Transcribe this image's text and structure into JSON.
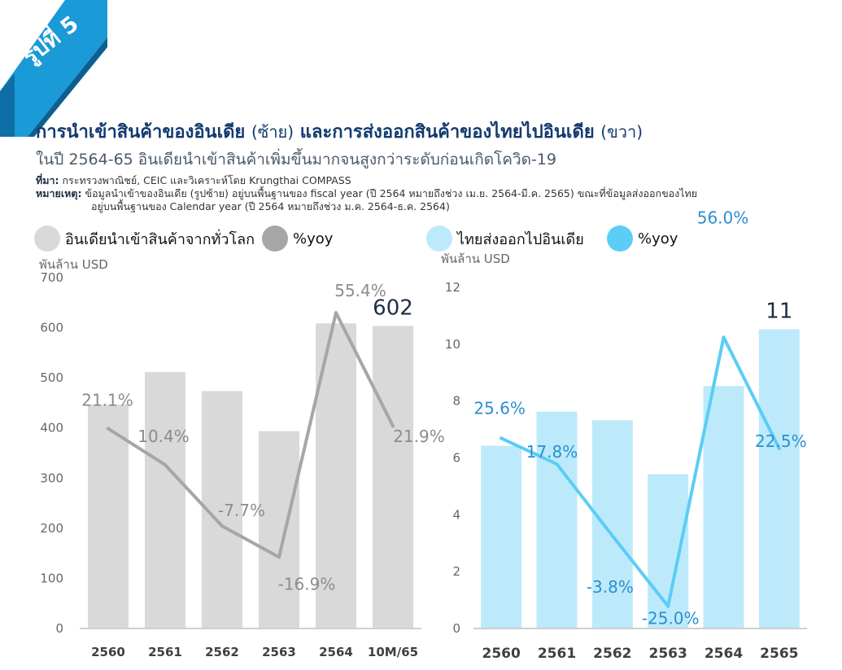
{
  "badge": {
    "label": "รูปที่ 5"
  },
  "header": {
    "title_left": "การนำเข้าสินค้าของอินเดีย",
    "title_left_paren": "(ซ้าย)",
    "title_mid": "และการส่งออกสินค้าของไทยไปอินเดีย",
    "title_right_paren": "(ขวา)",
    "subtitle": "ในปี 2564-65 อินเดียนำเข้าสินค้าเพิ่มขึ้นมากจนสูงกว่าระดับก่อนเกิดโควิด-19"
  },
  "notes": {
    "source_label": "ที่มา:",
    "source_text": "กระทรวงพาณิชย์, CEIC และวิเคราะห์โดย Krungthai COMPASS",
    "remark_label": "หมายเหตุ:",
    "remark_line1": "ข้อมูลนำเข้าของอินเดีย (รูปซ้าย) อยู่บนพื้นฐานของ fiscal year (ปี 2564 หมายถึงช่วง เม.ย. 2564-มี.ค. 2565) ขณะที่ข้อมูลส่งออกของไทย",
    "remark_line2": "อยู่บนพื้นฐานของ Calendar year (ปี 2564 หมายถึงช่วง ม.ค. 2564-ธ.ค. 2564)"
  },
  "colors": {
    "left_bar": "#d9d9d9",
    "left_line": "#a6a6a6",
    "right_bar": "#bdeafb",
    "right_line": "#5bcdf6",
    "right_label": "#2b8fd0",
    "title": "#123a6e",
    "ribbon": "#1a9ad6"
  },
  "chart_data": [
    {
      "type": "bar",
      "ylabel": "พันล้าน USD",
      "ylim": [
        0,
        700
      ],
      "yticks": [
        0,
        100,
        200,
        300,
        400,
        500,
        600,
        700
      ],
      "categories": [
        "2560",
        "2561",
        "2562",
        "2563",
        "2564",
        "10M/65"
      ],
      "series": [
        {
          "name": "อินเดียนำเข้าสินค้าจากทั่วโลก",
          "type": "bar",
          "values": [
            445,
            510,
            472,
            392,
            607,
            602
          ]
        },
        {
          "name": "%yoy",
          "type": "line",
          "values": [
            21.1,
            10.4,
            -7.7,
            -16.9,
            55.4,
            21.9
          ],
          "labels": [
            "21.1%",
            "10.4%",
            "-7.7%",
            "-16.9%",
            "55.4%",
            "21.9%"
          ]
        }
      ],
      "bar_value_labels": [
        {
          "category": "10M/65",
          "text": "602"
        }
      ],
      "grid": false
    },
    {
      "type": "bar",
      "ylabel": "พันล้าน USD",
      "ylim": [
        0,
        12
      ],
      "yticks": [
        0,
        2,
        4,
        6,
        8,
        10,
        12
      ],
      "categories": [
        "2560",
        "2561",
        "2562",
        "2563",
        "2564",
        "2565"
      ],
      "series": [
        {
          "name": "ไทยส่งออกไปอินเดีย",
          "type": "bar",
          "values": [
            6.4,
            7.6,
            7.3,
            5.4,
            8.5,
            10.5
          ]
        },
        {
          "name": "%yoy",
          "type": "line",
          "values": [
            25.6,
            17.8,
            -3.8,
            -25.0,
            56.0,
            22.5
          ],
          "labels": [
            "25.6%",
            "17.8%",
            "-3.8%",
            "-25.0%",
            "56.0%",
            "22.5%"
          ]
        }
      ],
      "bar_value_labels": [
        {
          "category": "2565",
          "text": "11"
        }
      ],
      "grid": false
    }
  ]
}
